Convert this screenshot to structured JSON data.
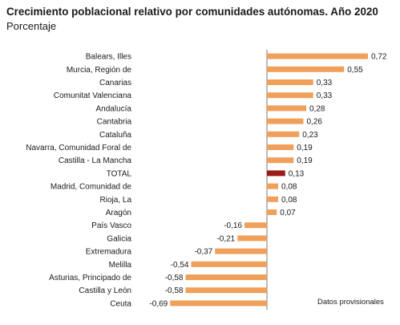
{
  "title": "Crecimiento poblacional relativo por comunidades autónomas. Año 2020",
  "subtitle": "Porcentaje",
  "note": "Datos provisionales",
  "colors": {
    "bar": "#f0a05a",
    "highlight": "#9b1b1b",
    "axis": "#595959",
    "text": "#1a1a1a"
  },
  "chart_data": {
    "type": "bar",
    "orientation": "horizontal",
    "categories": [
      "Balears, Illes",
      "Murcia, Región de",
      "Canarias",
      "Comunitat Valenciana",
      "Andalucía",
      "Cantabria",
      "Cataluña",
      "Navarra, Comunidad Foral de",
      "Castilla - La Mancha",
      "TOTAL",
      "Madrid, Comunidad de",
      "Rioja, La",
      "Aragón",
      "País Vasco",
      "Galicia",
      "Extremadura",
      "Melilla",
      "Asturias, Principado de",
      "Castilla y León",
      "Ceuta"
    ],
    "values": [
      0.72,
      0.55,
      0.33,
      0.33,
      0.28,
      0.26,
      0.23,
      0.19,
      0.19,
      0.13,
      0.08,
      0.08,
      0.07,
      -0.16,
      -0.21,
      -0.37,
      -0.54,
      -0.58,
      -0.58,
      -0.69
    ],
    "value_labels": [
      "0,72",
      "0,55",
      "0,33",
      "0,33",
      "0,28",
      "0,26",
      "0,23",
      "0,19",
      "0,19",
      "0,13",
      "0,08",
      "0,08",
      "0,07",
      "-0,16",
      "-0,21",
      "-0,37",
      "-0,54",
      "-0,58",
      "-0,58",
      "-0,69"
    ],
    "highlight": "TOTAL",
    "grid": false,
    "legend": "none"
  }
}
